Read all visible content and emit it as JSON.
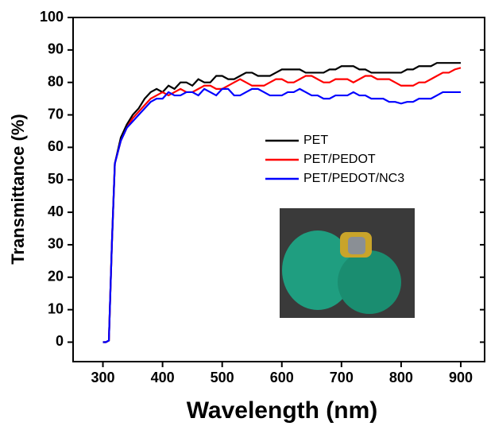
{
  "chart_data": {
    "type": "line",
    "x_label": "Wavelength (nm)",
    "y_label": "Transmittance (%)",
    "x": [
      300,
      305,
      310,
      315,
      320,
      330,
      340,
      350,
      360,
      370,
      380,
      390,
      400,
      410,
      420,
      430,
      440,
      450,
      460,
      470,
      480,
      490,
      500,
      510,
      520,
      530,
      540,
      550,
      560,
      570,
      580,
      590,
      600,
      610,
      620,
      630,
      640,
      650,
      660,
      670,
      680,
      690,
      700,
      710,
      720,
      730,
      740,
      750,
      760,
      770,
      780,
      790,
      800,
      810,
      820,
      830,
      840,
      850,
      860,
      870,
      880,
      890,
      900
    ],
    "series": [
      {
        "name": "PET",
        "color": "#000000",
        "values": [
          0,
          0,
          0.5,
          30,
          55,
          63,
          67,
          70,
          72,
          75,
          77,
          78,
          77,
          79,
          78,
          80,
          80,
          79,
          81,
          80,
          80,
          82,
          82,
          81,
          81,
          82,
          83,
          83,
          82,
          82,
          82,
          83,
          84,
          84,
          84,
          84,
          83,
          83,
          83,
          83,
          84,
          84,
          85,
          85,
          85,
          84,
          84,
          83,
          83,
          83,
          83,
          83,
          83,
          84,
          84,
          85,
          85,
          85,
          86,
          86,
          86,
          86,
          86
        ]
      },
      {
        "name": "PET/PEDOT",
        "color": "#ff0000",
        "values": [
          0,
          0,
          0.5,
          30,
          55,
          62,
          66,
          69,
          71,
          73,
          75,
          76,
          77,
          76,
          77,
          78,
          77,
          77,
          78,
          79,
          79,
          78,
          78,
          79,
          80,
          81,
          80,
          79,
          79,
          79,
          80,
          81,
          81,
          80,
          80,
          81,
          82,
          82,
          81,
          80,
          80,
          81,
          81,
          81,
          80,
          81,
          82,
          82,
          81,
          81,
          81,
          80,
          79,
          79,
          79,
          80,
          80,
          81,
          82,
          83,
          83,
          84,
          84.5
        ]
      },
      {
        "name": "PET/PEDOT/NC3",
        "color": "#0000ff",
        "values": [
          0,
          0,
          0.5,
          30,
          55,
          62,
          66,
          68,
          70,
          72,
          74,
          75,
          75,
          77,
          76,
          76,
          77,
          77,
          76,
          78,
          77,
          76,
          78,
          78,
          76,
          76,
          77,
          78,
          78,
          77,
          76,
          76,
          76,
          77,
          77,
          78,
          77,
          76,
          76,
          75,
          75,
          76,
          76,
          76,
          77,
          76,
          76,
          75,
          75,
          75,
          74,
          74,
          73.5,
          74,
          74,
          75,
          75,
          75,
          76,
          77,
          77,
          77,
          77
        ]
      }
    ],
    "xlim": [
      250,
      940
    ],
    "ylim": [
      -6,
      100
    ],
    "xticks": [
      300,
      400,
      500,
      600,
      700,
      800,
      900
    ],
    "yticks": [
      0,
      10,
      20,
      30,
      40,
      50,
      60,
      70,
      80,
      90,
      100
    ]
  }
}
